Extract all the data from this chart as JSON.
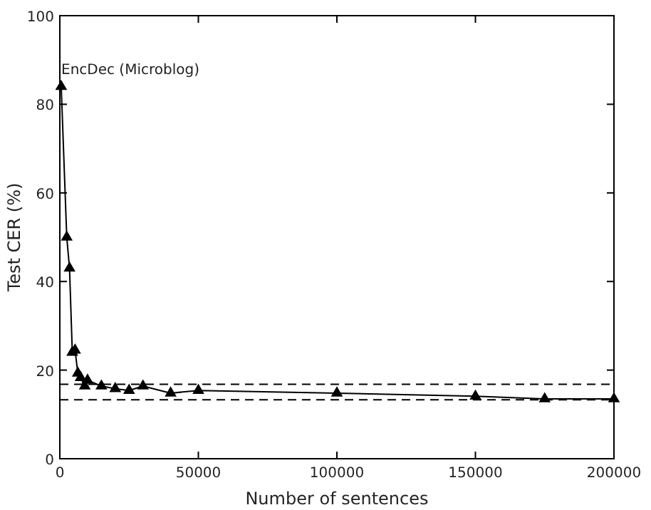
{
  "chart_data": {
    "type": "line",
    "xlabel": "Number of sentences",
    "ylabel": "Test CER (%)",
    "x": [
      500,
      2500,
      3500,
      4500,
      5500,
      6500,
      7500,
      9000,
      10000,
      15000,
      20000,
      25000,
      30000,
      40000,
      50000,
      100000,
      150000,
      175000,
      200000
    ],
    "series": [
      {
        "color": "#000000",
        "values": [
          84,
          50,
          43,
          24,
          24.5,
          19.3,
          18.3,
          16.4,
          17.7,
          16.4,
          15.8,
          15.4,
          16.4,
          14.8,
          15.4,
          14.8,
          14.1,
          13.5,
          13.5
        ]
      }
    ],
    "marker": "triangle",
    "line_style": "solid",
    "xlim": [
      0,
      200000
    ],
    "xticks": [
      0,
      50000,
      100000,
      150000,
      200000
    ],
    "ylim": [
      0,
      100
    ],
    "yticks": [
      0,
      20,
      40,
      60,
      80,
      100
    ],
    "grid": false,
    "ref_lines": [
      {
        "axis": "y",
        "value": 16.8,
        "line_style": "dashed",
        "color": "#000000"
      },
      {
        "axis": "y",
        "value": 13.3,
        "line_style": "dashed",
        "color": "#000000"
      }
    ],
    "annotations": [
      "EncDec (Microblog)"
    ]
  }
}
